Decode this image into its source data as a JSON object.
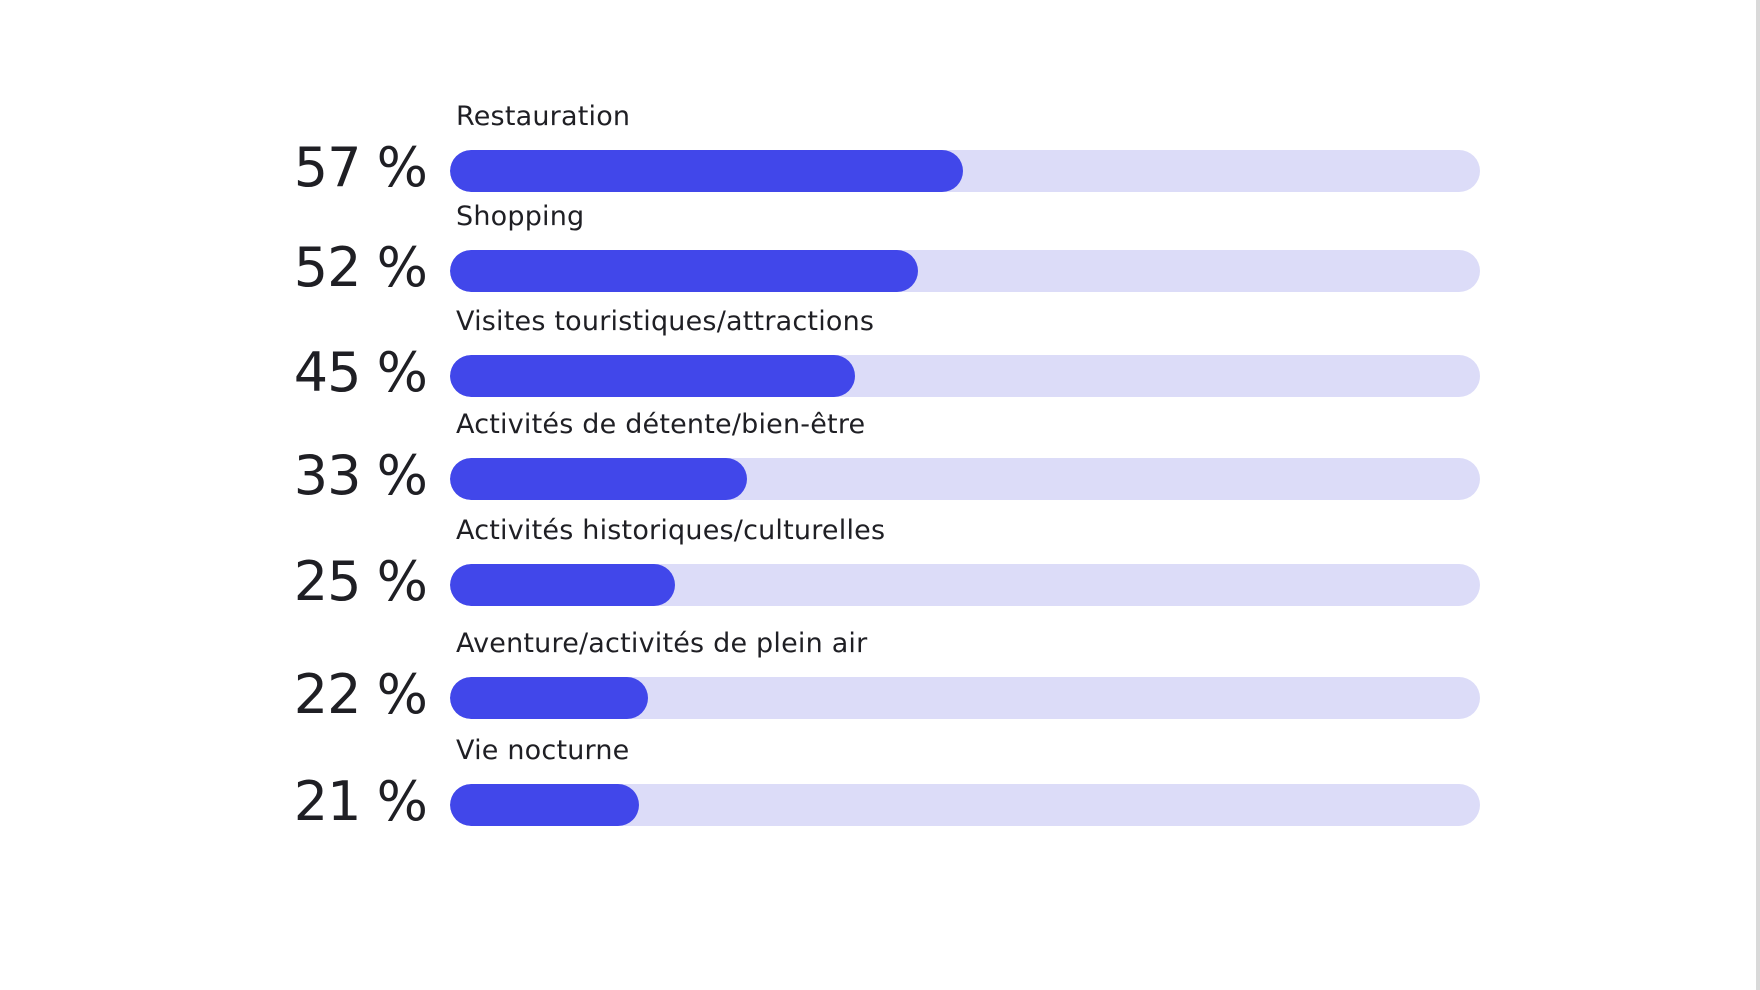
{
  "chart_data": {
    "type": "bar",
    "orientation": "horizontal",
    "categories": [
      "Restauration",
      "Shopping",
      "Visites touristiques/attractions",
      "Activités de détente/bien-être",
      "Activités historiques/culturelles",
      "Aventure/activités de plein air",
      "Vie nocturne"
    ],
    "values": [
      57,
      52,
      45,
      33,
      25,
      22,
      21
    ],
    "value_labels": [
      "57 %",
      "52 %",
      "45 %",
      "33 %",
      "25 %",
      "22 %",
      "21 %"
    ],
    "xlim": [
      0,
      100
    ],
    "grid": false,
    "legend": "none",
    "colors": {
      "bar": "#4147ea",
      "track": "#dcdcf8",
      "text": "#1f1f24"
    }
  }
}
